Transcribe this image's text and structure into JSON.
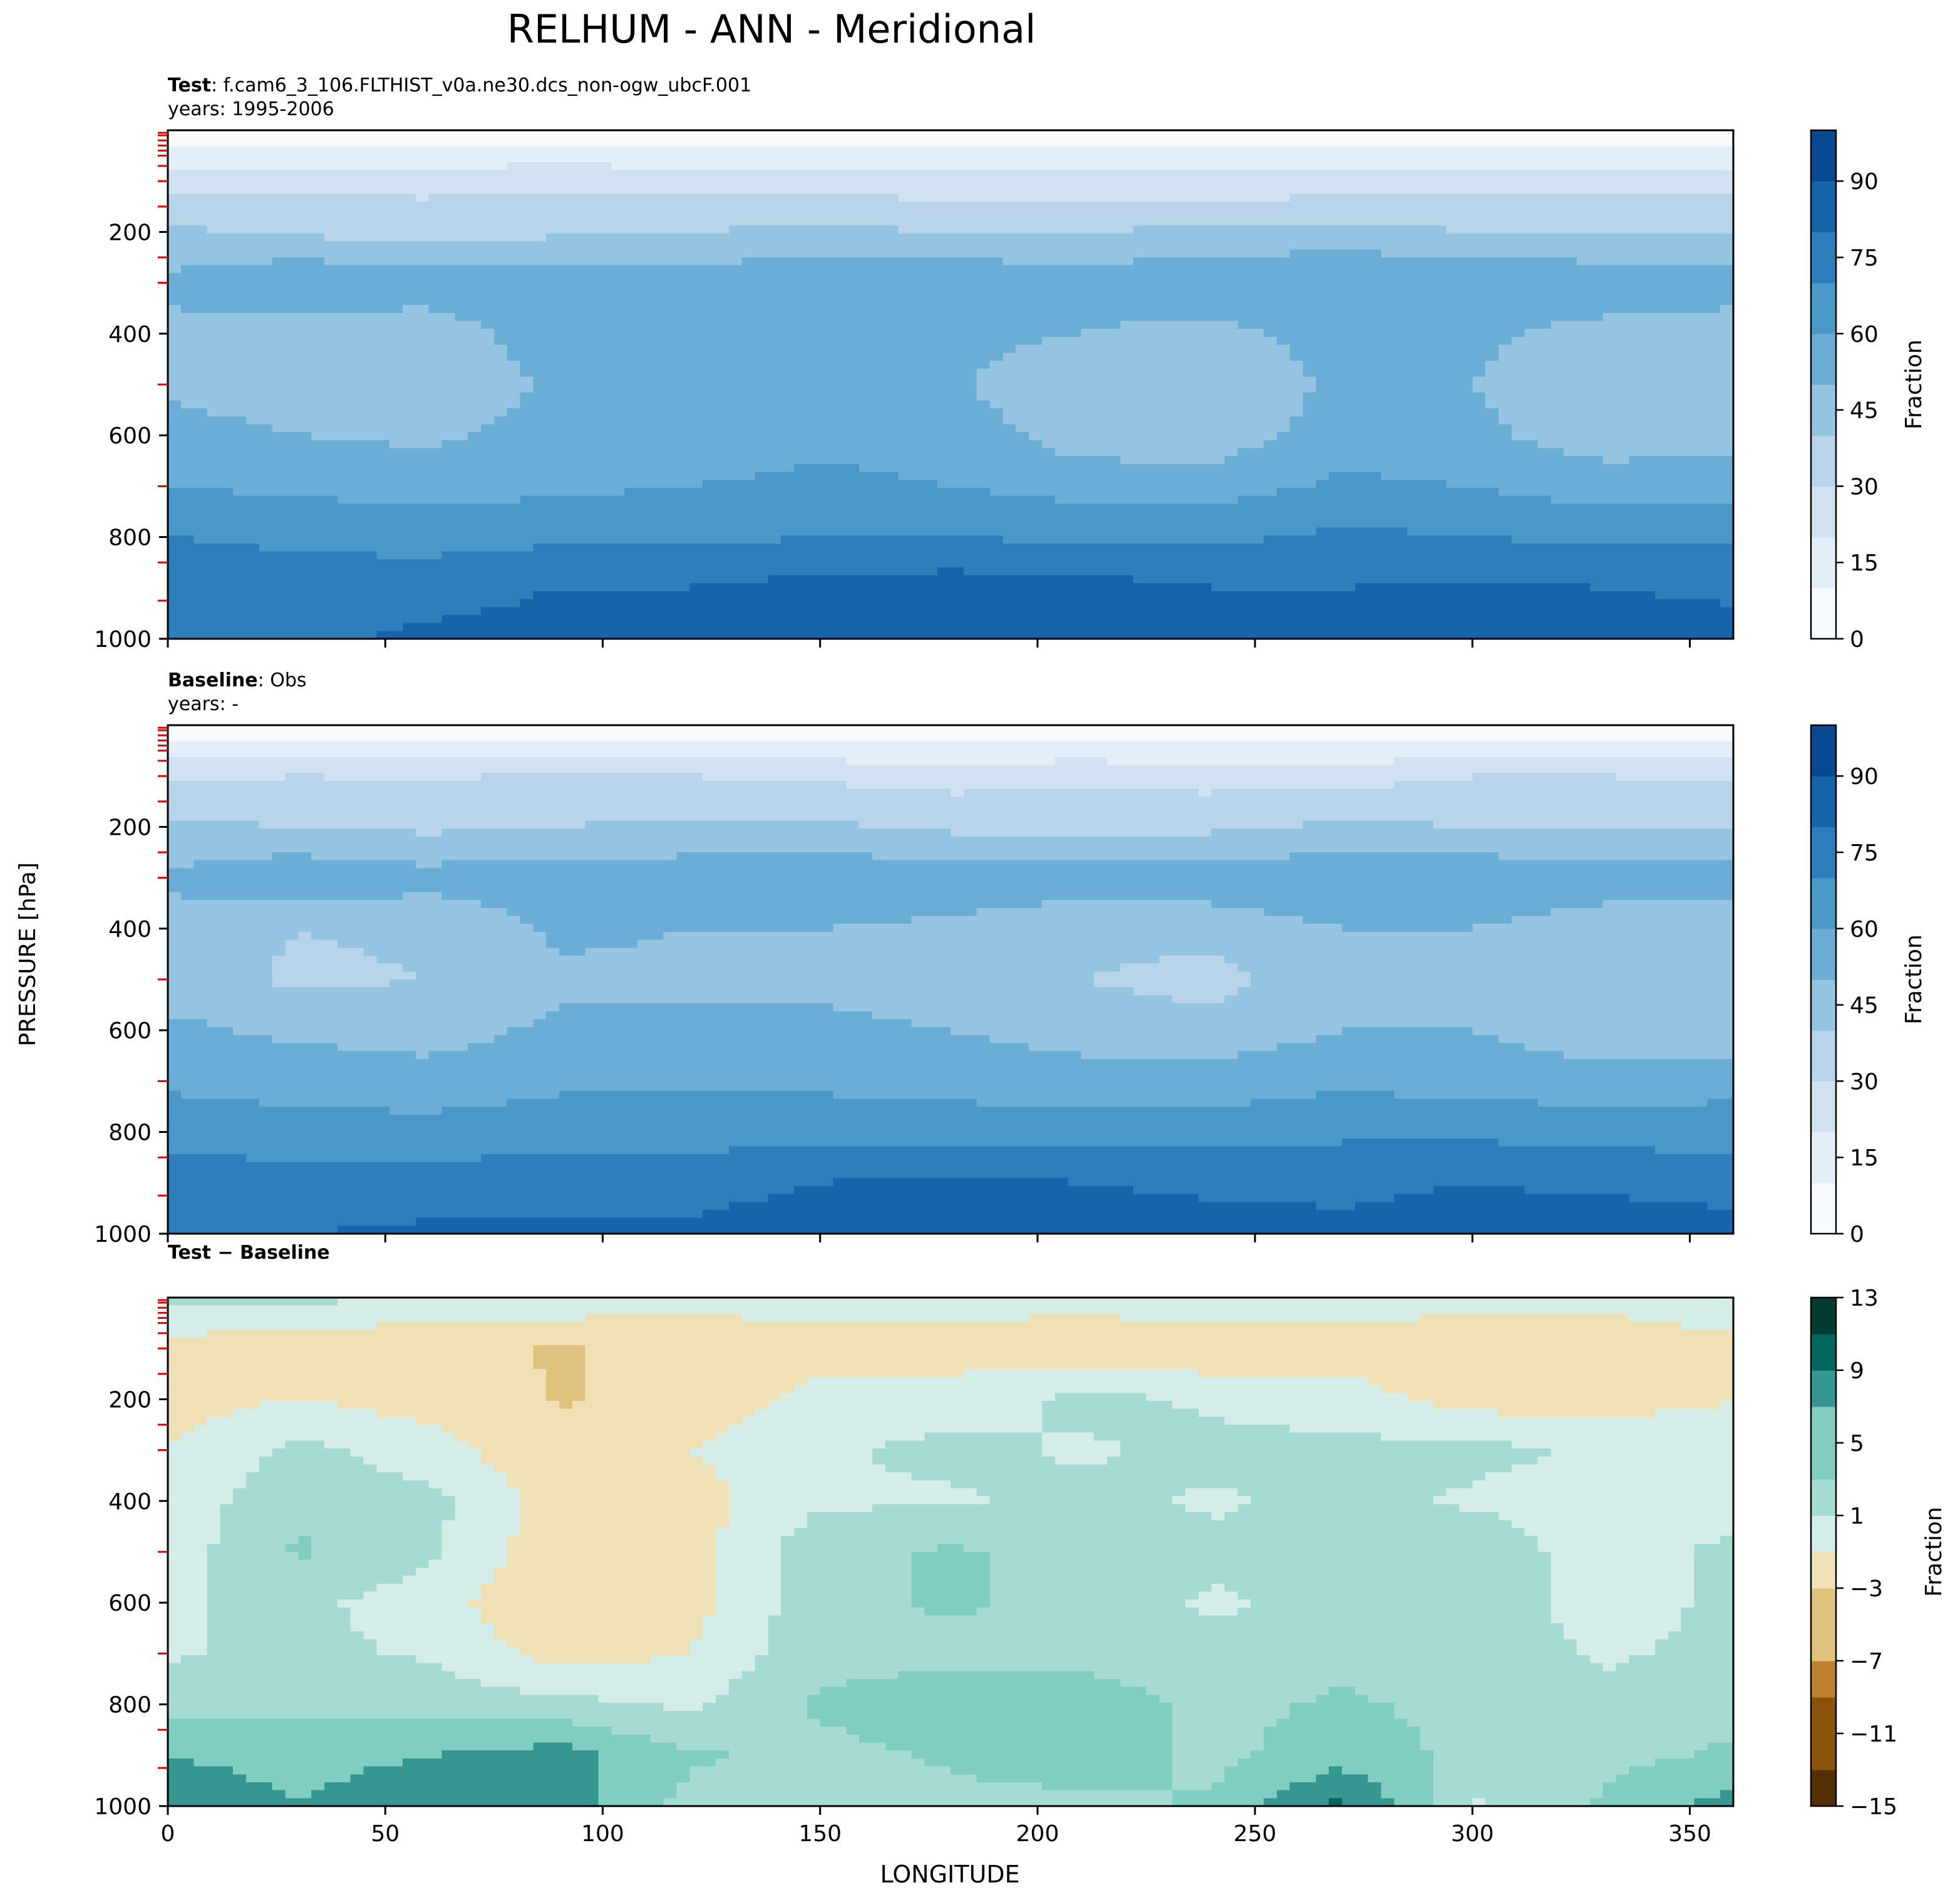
{
  "figure": {
    "title": "RELHUM - ANN - Meridional",
    "ylabel": "PRESSURE [hPa]",
    "xlabel": "LONGITUDE"
  },
  "panels": [
    {
      "id": "test",
      "label_bold": "Test",
      "label_text": ": f.cam6_3_106.FLTHIST_v0a.ne30.dcs_non-ogw_ubcF.001",
      "years": "years: 1995-2006"
    },
    {
      "id": "baseline",
      "label_bold": "Baseline",
      "label_text": ": Obs",
      "years": "years: -"
    },
    {
      "id": "diff",
      "label_bold": "Test − Baseline",
      "label_text": "",
      "years": ""
    }
  ],
  "colors": {
    "blues": [
      "#f7fbff",
      "#e3eef9",
      "#d0e1f2",
      "#b7d4ea",
      "#94c4df",
      "#6aaed6",
      "#4a98c9",
      "#2e7ebc",
      "#1764ab",
      "#084a91",
      "#08306b"
    ],
    "brbg_neg": [
      "#543005",
      "#8c510a",
      "#bf812d",
      "#dfc27d",
      "#f0e0b6",
      "#f5f5f5"
    ],
    "brbg_pos": [
      "#f5f5f5",
      "#d5ede9",
      "#a6dbd2",
      "#80cdc1",
      "#35978f",
      "#01665e",
      "#003c30"
    ]
  },
  "chart_data": [
    {
      "type": "heatmap",
      "panel": "Test",
      "subtitle": "f.cam6_3_106.FLTHIST_v0a.ne30.dcs_non-ogw_ubcF.001",
      "years": "1995-2006",
      "xlabel": "",
      "ylabel": "PRESSURE [hPa]",
      "xlim": [
        0,
        360
      ],
      "ylim": [
        1000,
        0
      ],
      "xticks": [
        0,
        50,
        100,
        150,
        200,
        250,
        300,
        350
      ],
      "yticks": [
        200,
        400,
        600,
        800,
        1000
      ],
      "colorbar": {
        "label": "Fraction",
        "ticks": [
          0,
          15,
          30,
          45,
          60,
          75,
          90
        ],
        "range": [
          0,
          100
        ],
        "cmap": "Blues"
      },
      "x": [
        0,
        30,
        60,
        90,
        120,
        150,
        180,
        210,
        240,
        270,
        300,
        330,
        360
      ],
      "y": [
        0,
        100,
        200,
        300,
        400,
        500,
        600,
        700,
        800,
        900,
        1000
      ],
      "z": [
        [
          2,
          2,
          2,
          2,
          2,
          2,
          2,
          2,
          2,
          2,
          2,
          2,
          2
        ],
        [
          26,
          27,
          27,
          28,
          27,
          26,
          24,
          25,
          23,
          24,
          26,
          27,
          26
        ],
        [
          42,
          38,
          36,
          38,
          40,
          42,
          40,
          40,
          42,
          44,
          40,
          38,
          40
        ],
        [
          52,
          60,
          55,
          58,
          55,
          60,
          58,
          56,
          58,
          60,
          60,
          58,
          55
        ],
        [
          48,
          42,
          45,
          55,
          50,
          58,
          54,
          50,
          46,
          55,
          52,
          46,
          45
        ],
        [
          48,
          42,
          42,
          52,
          52,
          56,
          52,
          40,
          42,
          52,
          50,
          44,
          44
        ],
        [
          55,
          50,
          48,
          54,
          55,
          58,
          56,
          45,
          44,
          55,
          52,
          45,
          46
        ],
        [
          60,
          58,
          56,
          58,
          60,
          62,
          60,
          56,
          55,
          62,
          60,
          55,
          56
        ],
        [
          70,
          68,
          66,
          68,
          68,
          70,
          70,
          68,
          68,
          72,
          70,
          68,
          68
        ],
        [
          78,
          75,
          76,
          80,
          80,
          84,
          85,
          84,
          80,
          80,
          82,
          80,
          78
        ],
        [
          80,
          78,
          82,
          84,
          84,
          88,
          90,
          88,
          84,
          82,
          84,
          86,
          84
        ]
      ]
    },
    {
      "type": "heatmap",
      "panel": "Baseline",
      "subtitle": "Obs",
      "years": "-",
      "xlabel": "",
      "ylabel": "PRESSURE [hPa]",
      "xlim": [
        0,
        360
      ],
      "ylim": [
        1000,
        0
      ],
      "xticks": [
        0,
        50,
        100,
        150,
        200,
        250,
        300,
        350
      ],
      "yticks": [
        200,
        400,
        600,
        800,
        1000
      ],
      "colorbar": {
        "label": "Fraction",
        "ticks": [
          0,
          15,
          30,
          45,
          60,
          75,
          90
        ],
        "range": [
          0,
          100
        ],
        "cmap": "Blues"
      },
      "x": [
        0,
        30,
        60,
        90,
        120,
        150,
        180,
        210,
        240,
        270,
        300,
        330,
        360
      ],
      "y": [
        0,
        100,
        200,
        300,
        400,
        500,
        600,
        700,
        800,
        900,
        1000
      ],
      "z": [
        [
          2,
          2,
          2,
          2,
          2,
          2,
          2,
          2,
          2,
          2,
          2,
          2,
          2
        ],
        [
          28,
          30,
          29,
          31,
          30,
          28,
          26,
          28,
          26,
          26,
          30,
          30,
          28
        ],
        [
          42,
          40,
          38,
          40,
          42,
          42,
          38,
          36,
          38,
          42,
          40,
          38,
          40
        ],
        [
          52,
          58,
          54,
          56,
          56,
          58,
          56,
          55,
          56,
          58,
          58,
          56,
          54
        ],
        [
          46,
          40,
          42,
          52,
          50,
          50,
          48,
          44,
          44,
          50,
          50,
          44,
          44
        ],
        [
          46,
          38,
          40,
          48,
          48,
          48,
          45,
          40,
          36,
          48,
          46,
          42,
          40
        ],
        [
          52,
          48,
          46,
          52,
          52,
          52,
          50,
          46,
          44,
          50,
          50,
          44,
          44
        ],
        [
          58,
          56,
          54,
          58,
          58,
          58,
          56,
          54,
          54,
          58,
          56,
          54,
          56
        ],
        [
          66,
          64,
          64,
          66,
          66,
          66,
          66,
          66,
          66,
          68,
          68,
          66,
          66
        ],
        [
          76,
          74,
          74,
          76,
          76,
          80,
          82,
          80,
          78,
          78,
          80,
          78,
          76
        ],
        [
          80,
          80,
          82,
          82,
          82,
          86,
          88,
          86,
          84,
          82,
          84,
          86,
          84
        ]
      ]
    },
    {
      "type": "heatmap",
      "panel": "Test − Baseline",
      "xlabel": "LONGITUDE",
      "ylabel": "PRESSURE [hPa]",
      "xlim": [
        0,
        360
      ],
      "ylim": [
        1000,
        0
      ],
      "xticks": [
        0,
        50,
        100,
        150,
        200,
        250,
        300,
        350
      ],
      "yticks": [
        200,
        400,
        600,
        800,
        1000
      ],
      "colorbar": {
        "label": "Fraction",
        "ticks": [
          -15,
          -11,
          -7,
          -3,
          1,
          5,
          9,
          13
        ],
        "tick_labels": [
          "−15",
          "−11",
          "−7",
          "−3",
          "1",
          "5",
          "9",
          "13"
        ],
        "range": [
          -15,
          13
        ],
        "cmap": "BrBG"
      },
      "x": [
        0,
        30,
        60,
        90,
        120,
        150,
        180,
        210,
        240,
        270,
        300,
        330,
        360
      ],
      "y": [
        0,
        100,
        200,
        300,
        400,
        500,
        600,
        700,
        800,
        900,
        1000
      ],
      "z": [
        [
          2,
          2,
          1,
          1,
          0,
          0,
          0,
          0,
          1,
          0,
          0,
          0,
          1
        ],
        [
          -2,
          -3,
          -3,
          -4,
          -3,
          -2,
          -2,
          -3,
          -3,
          -2,
          -3,
          -3,
          -2
        ],
        [
          -2,
          -1,
          -2,
          -4,
          -3,
          0,
          0,
          2,
          1,
          0,
          -2,
          -2,
          -1
        ],
        [
          -1,
          2,
          0,
          -3,
          -1,
          1,
          2,
          1,
          2,
          2,
          2,
          1,
          0
        ],
        [
          0,
          3,
          2,
          -2,
          -2,
          1,
          1,
          2,
          1,
          2,
          1,
          0,
          0
        ],
        [
          0,
          4,
          2,
          -3,
          -2,
          3,
          4,
          3,
          2,
          2,
          3,
          0,
          2
        ],
        [
          1,
          2,
          0,
          -3,
          -2,
          3,
          4,
          3,
          1,
          2,
          3,
          0,
          2
        ],
        [
          1,
          2,
          1,
          -2,
          -1,
          3,
          3,
          3,
          2,
          3,
          3,
          1,
          2
        ],
        [
          3,
          3,
          3,
          2,
          1,
          4,
          5,
          5,
          3,
          4,
          3,
          2,
          3
        ],
        [
          6,
          5,
          6,
          7,
          4,
          3,
          4,
          5,
          3,
          5,
          3,
          3,
          4
        ],
        [
          8,
          6,
          8,
          7,
          3,
          2,
          3,
          3,
          4,
          9,
          1,
          4,
          7
        ]
      ]
    }
  ]
}
